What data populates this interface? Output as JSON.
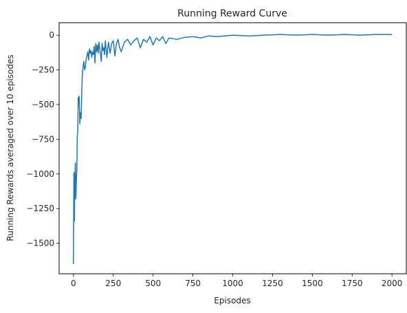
{
  "chart_data": {
    "type": "line",
    "title": "Running Reward Curve",
    "xlabel": "Episodes",
    "ylabel": "Running Rewards averaged over 10 episodes",
    "xlim": [
      -90,
      2090
    ],
    "ylim": [
      -1720,
      90
    ],
    "xticks": [
      0,
      250,
      500,
      750,
      1000,
      1250,
      1500,
      1750,
      2000
    ],
    "yticks": [
      0,
      -250,
      -500,
      -750,
      -1000,
      -1250,
      -1500
    ],
    "xtick_labels": [
      "0",
      "250",
      "500",
      "750",
      "1000",
      "1250",
      "1500",
      "1750",
      "2000"
    ],
    "ytick_labels": [
      "0",
      "−250",
      "−500",
      "−750",
      "−1000",
      "−1250",
      "−1500"
    ],
    "grid": false,
    "line_color": "#1f77b4",
    "series": [
      {
        "x": [
          0,
          3,
          6,
          9,
          12,
          15,
          18,
          21,
          24,
          27,
          30,
          33,
          36,
          40,
          44,
          48,
          52,
          56,
          60,
          65,
          70,
          75,
          80,
          85,
          90,
          95,
          100,
          105,
          110,
          115,
          120,
          125,
          130,
          135,
          140,
          145,
          150,
          155,
          160,
          165,
          170,
          175,
          180,
          185,
          190,
          195,
          200,
          210,
          220,
          230,
          240,
          250,
          260,
          270,
          280,
          290,
          300,
          320,
          340,
          360,
          380,
          400,
          420,
          440,
          460,
          480,
          500,
          520,
          540,
          560,
          580,
          600,
          650,
          700,
          750,
          800,
          850,
          900,
          950,
          1000,
          1100,
          1200,
          1300,
          1400,
          1500,
          1600,
          1700,
          1800,
          1900,
          2000
        ],
        "values": [
          -1650,
          -990,
          -1340,
          -1050,
          -920,
          -1180,
          -1060,
          -980,
          -730,
          -690,
          -450,
          -500,
          -440,
          -640,
          -560,
          -600,
          -410,
          -280,
          -230,
          -190,
          -250,
          -230,
          -170,
          -150,
          -120,
          -180,
          -100,
          -130,
          -110,
          -160,
          -120,
          -140,
          -80,
          -200,
          -60,
          -120,
          -70,
          -130,
          -50,
          -100,
          -140,
          -190,
          -60,
          -110,
          -90,
          -140,
          -40,
          -160,
          -50,
          -130,
          -60,
          -40,
          -150,
          -60,
          -30,
          -90,
          -120,
          -50,
          -30,
          -70,
          -40,
          -20,
          -90,
          -30,
          -50,
          -10,
          -70,
          -20,
          -40,
          -10,
          -60,
          -20,
          -30,
          -15,
          -10,
          -20,
          -5,
          -10,
          -5,
          0,
          -5,
          0,
          5,
          0,
          5,
          0,
          5,
          0,
          5,
          5
        ]
      }
    ]
  }
}
